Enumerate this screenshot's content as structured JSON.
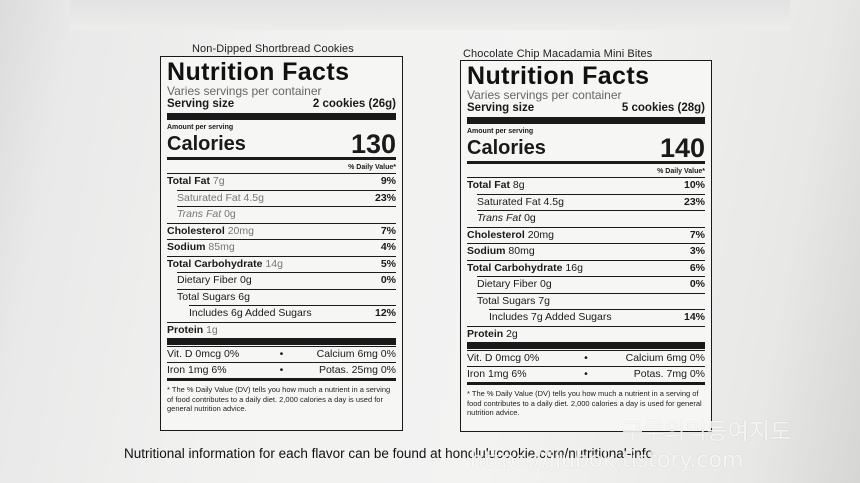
{
  "footer_note": "Nutritional information for each flavor can be found at honolulucookie.com/nutritional-info",
  "watermark": {
    "korean": "구루의먹등여지도",
    "url": "https://jjubok.tistory.com"
  },
  "labels": [
    {
      "flavor": "Non-Dipped Shortbread Cookies",
      "title": "Nutrition Facts",
      "servings": "Varies servings per container",
      "serving_size_label": "Serving size",
      "serving_size_value": "2 cookies (26g)",
      "amount_per_serving": "Amount per serving",
      "calories_label": "Calories",
      "calories_value": "130",
      "dv_header": "% Daily Value*",
      "rows": [
        {
          "name": "Total Fat",
          "amount": "7g",
          "pct": "9%"
        },
        {
          "name": "Saturated Fat",
          "amount": "4.5g",
          "pct": "23%"
        },
        {
          "name": "Trans Fat",
          "amount": "0g",
          "pct": ""
        },
        {
          "name": "Cholesterol",
          "amount": "20mg",
          "pct": "7%"
        },
        {
          "name": "Sodium",
          "amount": "85mg",
          "pct": "4%"
        },
        {
          "name": "Total Carbohydrate",
          "amount": "14g",
          "pct": "5%"
        },
        {
          "name": "Dietary Fiber",
          "amount": "0g",
          "pct": "0%"
        },
        {
          "name": "Total Sugars",
          "amount": "6g",
          "pct": ""
        },
        {
          "name": "Includes 6g Added Sugars",
          "amount": "",
          "pct": "12%"
        },
        {
          "name": "Protein",
          "amount": "1g",
          "pct": ""
        }
      ],
      "vitamins": [
        {
          "left": "Vit. D 0mcg  0%",
          "right": "Calcium 6mg  0%"
        },
        {
          "left": "Iron 1mg  6%",
          "right": "Potas. 25mg  0%"
        }
      ],
      "footnote": "* The % Daily Value (DV) tells you how much a nutrient in a serving of food contributes to a daily diet. 2,000 calories a day is used for general nutrition advice."
    },
    {
      "flavor": "Chocolate Chip Macadamia Mini Bites",
      "title": "Nutrition Facts",
      "servings": "Varies servings per container",
      "serving_size_label": "Serving size",
      "serving_size_value": "5 cookies (28g)",
      "amount_per_serving": "Amount per serving",
      "calories_label": "Calories",
      "calories_value": "140",
      "dv_header": "% Daily Value*",
      "rows": [
        {
          "name": "Total Fat",
          "amount": "8g",
          "pct": "10%"
        },
        {
          "name": "Saturated Fat",
          "amount": "4.5g",
          "pct": "23%"
        },
        {
          "name": "Trans Fat",
          "amount": "0g",
          "pct": ""
        },
        {
          "name": "Cholesterol",
          "amount": "20mg",
          "pct": "7%"
        },
        {
          "name": "Sodium",
          "amount": "80mg",
          "pct": "3%"
        },
        {
          "name": "Total Carbohydrate",
          "amount": "16g",
          "pct": "6%"
        },
        {
          "name": "Dietary Fiber",
          "amount": "0g",
          "pct": "0%"
        },
        {
          "name": "Total Sugars",
          "amount": "7g",
          "pct": ""
        },
        {
          "name": "Includes 7g Added Sugars",
          "amount": "",
          "pct": "14%"
        },
        {
          "name": "Protein",
          "amount": "2g",
          "pct": ""
        }
      ],
      "vitamins": [
        {
          "left": "Vit. D 0mcg  0%",
          "right": "Calcium 6mg  0%"
        },
        {
          "left": "Iron 1mg  6%",
          "right": "Potas. 7mg  0%"
        }
      ],
      "footnote": "* The % Daily Value (DV) tells you how much a nutrient in a serving of food contributes to a daily diet. 2,000 calories a day is used for general nutrition advice."
    }
  ]
}
